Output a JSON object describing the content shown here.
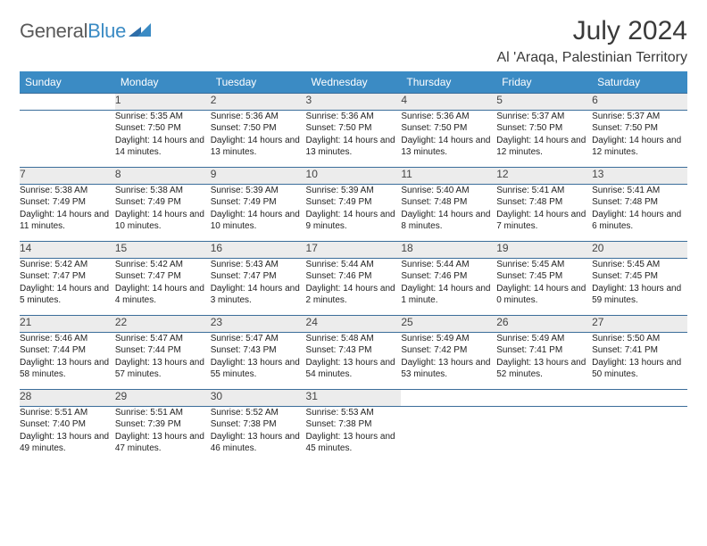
{
  "logo": {
    "text1": "General",
    "text2": "Blue"
  },
  "title": "July 2024",
  "location": "Al 'Araqa, Palestinian Territory",
  "colors": {
    "header_bg": "#3b8bc4",
    "header_text": "#ffffff",
    "row_divider": "#3b6d9a",
    "daynum_bg": "#ececec",
    "page_bg": "#ffffff",
    "text": "#222222",
    "logo_gray": "#5a5a5a",
    "logo_blue": "#3b8bc4"
  },
  "typography": {
    "title_fontsize": 30,
    "location_fontsize": 16,
    "weekday_fontsize": 12,
    "daynum_fontsize": 12,
    "body_fontsize": 10
  },
  "weekdays": [
    "Sunday",
    "Monday",
    "Tuesday",
    "Wednesday",
    "Thursday",
    "Friday",
    "Saturday"
  ],
  "weeks": [
    [
      null,
      {
        "n": "1",
        "sunrise": "Sunrise: 5:35 AM",
        "sunset": "Sunset: 7:50 PM",
        "daylight": "Daylight: 14 hours and 14 minutes."
      },
      {
        "n": "2",
        "sunrise": "Sunrise: 5:36 AM",
        "sunset": "Sunset: 7:50 PM",
        "daylight": "Daylight: 14 hours and 13 minutes."
      },
      {
        "n": "3",
        "sunrise": "Sunrise: 5:36 AM",
        "sunset": "Sunset: 7:50 PM",
        "daylight": "Daylight: 14 hours and 13 minutes."
      },
      {
        "n": "4",
        "sunrise": "Sunrise: 5:36 AM",
        "sunset": "Sunset: 7:50 PM",
        "daylight": "Daylight: 14 hours and 13 minutes."
      },
      {
        "n": "5",
        "sunrise": "Sunrise: 5:37 AM",
        "sunset": "Sunset: 7:50 PM",
        "daylight": "Daylight: 14 hours and 12 minutes."
      },
      {
        "n": "6",
        "sunrise": "Sunrise: 5:37 AM",
        "sunset": "Sunset: 7:50 PM",
        "daylight": "Daylight: 14 hours and 12 minutes."
      }
    ],
    [
      {
        "n": "7",
        "sunrise": "Sunrise: 5:38 AM",
        "sunset": "Sunset: 7:49 PM",
        "daylight": "Daylight: 14 hours and 11 minutes."
      },
      {
        "n": "8",
        "sunrise": "Sunrise: 5:38 AM",
        "sunset": "Sunset: 7:49 PM",
        "daylight": "Daylight: 14 hours and 10 minutes."
      },
      {
        "n": "9",
        "sunrise": "Sunrise: 5:39 AM",
        "sunset": "Sunset: 7:49 PM",
        "daylight": "Daylight: 14 hours and 10 minutes."
      },
      {
        "n": "10",
        "sunrise": "Sunrise: 5:39 AM",
        "sunset": "Sunset: 7:49 PM",
        "daylight": "Daylight: 14 hours and 9 minutes."
      },
      {
        "n": "11",
        "sunrise": "Sunrise: 5:40 AM",
        "sunset": "Sunset: 7:48 PM",
        "daylight": "Daylight: 14 hours and 8 minutes."
      },
      {
        "n": "12",
        "sunrise": "Sunrise: 5:41 AM",
        "sunset": "Sunset: 7:48 PM",
        "daylight": "Daylight: 14 hours and 7 minutes."
      },
      {
        "n": "13",
        "sunrise": "Sunrise: 5:41 AM",
        "sunset": "Sunset: 7:48 PM",
        "daylight": "Daylight: 14 hours and 6 minutes."
      }
    ],
    [
      {
        "n": "14",
        "sunrise": "Sunrise: 5:42 AM",
        "sunset": "Sunset: 7:47 PM",
        "daylight": "Daylight: 14 hours and 5 minutes."
      },
      {
        "n": "15",
        "sunrise": "Sunrise: 5:42 AM",
        "sunset": "Sunset: 7:47 PM",
        "daylight": "Daylight: 14 hours and 4 minutes."
      },
      {
        "n": "16",
        "sunrise": "Sunrise: 5:43 AM",
        "sunset": "Sunset: 7:47 PM",
        "daylight": "Daylight: 14 hours and 3 minutes."
      },
      {
        "n": "17",
        "sunrise": "Sunrise: 5:44 AM",
        "sunset": "Sunset: 7:46 PM",
        "daylight": "Daylight: 14 hours and 2 minutes."
      },
      {
        "n": "18",
        "sunrise": "Sunrise: 5:44 AM",
        "sunset": "Sunset: 7:46 PM",
        "daylight": "Daylight: 14 hours and 1 minute."
      },
      {
        "n": "19",
        "sunrise": "Sunrise: 5:45 AM",
        "sunset": "Sunset: 7:45 PM",
        "daylight": "Daylight: 14 hours and 0 minutes."
      },
      {
        "n": "20",
        "sunrise": "Sunrise: 5:45 AM",
        "sunset": "Sunset: 7:45 PM",
        "daylight": "Daylight: 13 hours and 59 minutes."
      }
    ],
    [
      {
        "n": "21",
        "sunrise": "Sunrise: 5:46 AM",
        "sunset": "Sunset: 7:44 PM",
        "daylight": "Daylight: 13 hours and 58 minutes."
      },
      {
        "n": "22",
        "sunrise": "Sunrise: 5:47 AM",
        "sunset": "Sunset: 7:44 PM",
        "daylight": "Daylight: 13 hours and 57 minutes."
      },
      {
        "n": "23",
        "sunrise": "Sunrise: 5:47 AM",
        "sunset": "Sunset: 7:43 PM",
        "daylight": "Daylight: 13 hours and 55 minutes."
      },
      {
        "n": "24",
        "sunrise": "Sunrise: 5:48 AM",
        "sunset": "Sunset: 7:43 PM",
        "daylight": "Daylight: 13 hours and 54 minutes."
      },
      {
        "n": "25",
        "sunrise": "Sunrise: 5:49 AM",
        "sunset": "Sunset: 7:42 PM",
        "daylight": "Daylight: 13 hours and 53 minutes."
      },
      {
        "n": "26",
        "sunrise": "Sunrise: 5:49 AM",
        "sunset": "Sunset: 7:41 PM",
        "daylight": "Daylight: 13 hours and 52 minutes."
      },
      {
        "n": "27",
        "sunrise": "Sunrise: 5:50 AM",
        "sunset": "Sunset: 7:41 PM",
        "daylight": "Daylight: 13 hours and 50 minutes."
      }
    ],
    [
      {
        "n": "28",
        "sunrise": "Sunrise: 5:51 AM",
        "sunset": "Sunset: 7:40 PM",
        "daylight": "Daylight: 13 hours and 49 minutes."
      },
      {
        "n": "29",
        "sunrise": "Sunrise: 5:51 AM",
        "sunset": "Sunset: 7:39 PM",
        "daylight": "Daylight: 13 hours and 47 minutes."
      },
      {
        "n": "30",
        "sunrise": "Sunrise: 5:52 AM",
        "sunset": "Sunset: 7:38 PM",
        "daylight": "Daylight: 13 hours and 46 minutes."
      },
      {
        "n": "31",
        "sunrise": "Sunrise: 5:53 AM",
        "sunset": "Sunset: 7:38 PM",
        "daylight": "Daylight: 13 hours and 45 minutes."
      },
      null,
      null,
      null
    ]
  ]
}
